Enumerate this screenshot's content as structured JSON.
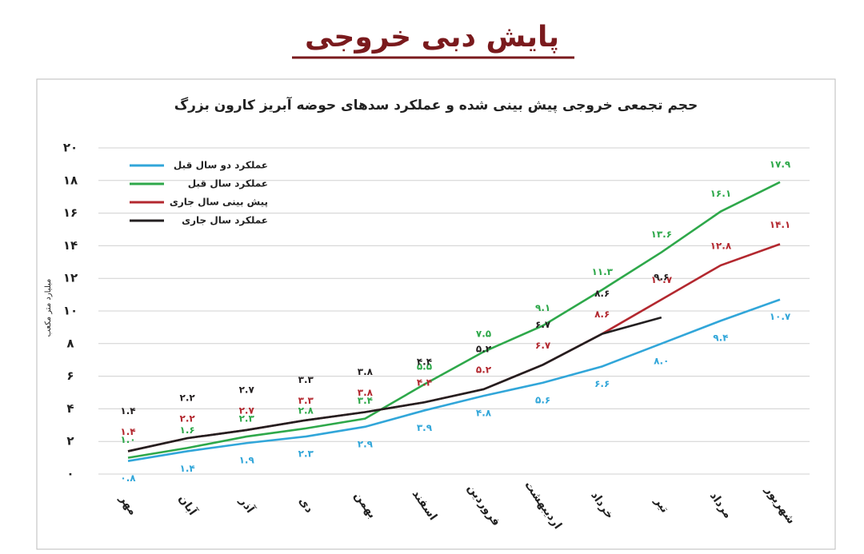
{
  "page_title": "پایش دبی خروجی",
  "chart_data": {
    "type": "line",
    "title": "حجم تجمعی خروجی پیش بینی شده و عملکرد سدهای حوضه آبریز کارون بزرگ",
    "y_label": "میلیارد متر مکعب",
    "categories": [
      "مهر",
      "آبان",
      "آذر",
      "دی",
      "بهمن",
      "اسفند",
      "فروردین",
      "اردیبهشت",
      "خرداد",
      "تیر",
      "مرداد",
      "شهریور"
    ],
    "ylim": [
      0,
      20
    ],
    "yticks": [
      {
        "value": 0,
        "label": "۰"
      },
      {
        "value": 2,
        "label": "۲"
      },
      {
        "value": 4,
        "label": "۴"
      },
      {
        "value": 6,
        "label": "۶"
      },
      {
        "value": 8,
        "label": "۸"
      },
      {
        "value": 10,
        "label": "۱۰"
      },
      {
        "value": 12,
        "label": "۱۲"
      },
      {
        "value": 14,
        "label": "۱۴"
      },
      {
        "value": 16,
        "label": "۱۶"
      },
      {
        "value": 18,
        "label": "۱۸"
      },
      {
        "value": 20,
        "label": "۲۰"
      }
    ],
    "grid": true,
    "legend": "upper left",
    "series": [
      {
        "name": "عملکرد دو سال قبل",
        "color": "#31a6d9",
        "values": [
          0.8,
          1.4,
          1.9,
          2.3,
          2.9,
          3.9,
          4.8,
          5.6,
          6.6,
          8.0,
          9.4,
          10.7
        ],
        "value_labels": [
          "۰.۸",
          "۱.۴",
          "۱.۹",
          "۲.۳",
          "۲.۹",
          "۳.۹",
          "۴.۸",
          "۵.۶",
          "۶.۶",
          "۸.۰",
          "۹.۴",
          "۱۰.۷"
        ]
      },
      {
        "name": "عملکرد سال قبل",
        "color": "#2ea84a",
        "values": [
          1.0,
          1.6,
          2.3,
          2.8,
          3.4,
          5.5,
          7.5,
          9.1,
          11.3,
          13.6,
          16.1,
          17.9
        ],
        "value_labels": [
          "۱.۰",
          "۱.۶",
          "۲.۳",
          "۲.۸",
          "۳.۴",
          "۵.۵",
          "۷.۵",
          "۹.۱",
          "۱۱.۳",
          "۱۳.۶",
          "۱۶.۱",
          "۱۷.۹"
        ]
      },
      {
        "name": "پیش بینی سال جاری",
        "color": "#b3282f",
        "values": [
          1.4,
          2.2,
          2.7,
          3.3,
          3.8,
          4.4,
          5.2,
          6.7,
          8.6,
          10.7,
          12.8,
          14.1
        ],
        "value_labels": [
          "۱.۴",
          "۲.۲",
          "۲.۷",
          "۳.۳",
          "۳.۸",
          "۴.۴",
          "۵.۲",
          "۶.۷",
          "۸.۶",
          "۱۰.۷",
          "۱۲.۸",
          "۱۴.۱"
        ]
      },
      {
        "name": "عملکرد سال جاری",
        "color": "#231f20",
        "values": [
          1.4,
          2.2,
          2.7,
          3.3,
          3.8,
          4.4,
          5.2,
          6.7,
          8.6,
          9.6,
          null,
          null
        ],
        "value_labels": [
          "۱.۴",
          "۲.۲",
          "۲.۷",
          "۳.۳",
          "۳.۸",
          "۴.۴",
          "۵.۲",
          "۶.۷",
          "۸.۶",
          "۹.۶",
          null,
          null
        ]
      }
    ]
  }
}
